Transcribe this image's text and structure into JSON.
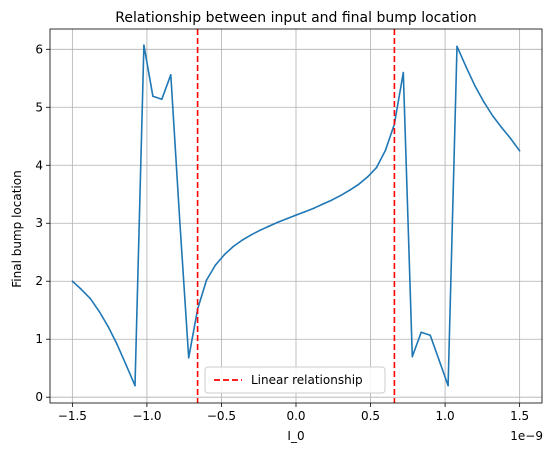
{
  "chart_data": {
    "type": "line",
    "title": "Relationship between input and final bump location",
    "xlabel": "I_0",
    "ylabel": "Final bump location",
    "x_offset_label": "1e−9",
    "xlim": [
      -1.65,
      1.65
    ],
    "ylim": [
      -0.1,
      6.35
    ],
    "x_ticks": [
      -1.5,
      -1.0,
      -0.5,
      0.0,
      0.5,
      1.0,
      1.5
    ],
    "x_tick_labels": [
      "−1.5",
      "−1.0",
      "−0.5",
      "0.0",
      "0.5",
      "1.0",
      "1.5"
    ],
    "y_ticks": [
      0,
      1,
      2,
      3,
      4,
      5,
      6
    ],
    "y_tick_labels": [
      "0",
      "1",
      "2",
      "3",
      "4",
      "5",
      "6"
    ],
    "grid": true,
    "legend_position": "bottom-center",
    "series": [
      {
        "color": "#1f77b4",
        "x": [
          -1.5,
          -1.44,
          -1.38,
          -1.32,
          -1.26,
          -1.2,
          -1.14,
          -1.08,
          -1.02,
          -0.96,
          -0.9,
          -0.84,
          -0.78,
          -0.72,
          -0.66,
          -0.6,
          -0.54,
          -0.48,
          -0.42,
          -0.36,
          -0.3,
          -0.24,
          -0.18,
          -0.12,
          -0.06,
          0.0,
          0.06,
          0.12,
          0.18,
          0.24,
          0.3,
          0.36,
          0.42,
          0.48,
          0.54,
          0.6,
          0.66,
          0.72,
          0.78,
          0.84,
          0.9,
          0.96,
          1.02,
          1.08,
          1.14,
          1.2,
          1.26,
          1.32,
          1.38,
          1.44,
          1.5
        ],
        "values": [
          2.0,
          1.86,
          1.7,
          1.48,
          1.22,
          0.91,
          0.56,
          0.2,
          6.07,
          5.19,
          5.14,
          5.56,
          3.06,
          0.68,
          1.52,
          2.02,
          2.28,
          2.46,
          2.6,
          2.71,
          2.8,
          2.88,
          2.95,
          3.02,
          3.08,
          3.14,
          3.2,
          3.26,
          3.33,
          3.4,
          3.48,
          3.57,
          3.67,
          3.8,
          3.96,
          4.26,
          4.71,
          5.6,
          0.7,
          1.12,
          1.07,
          0.64,
          0.2,
          6.05,
          5.7,
          5.37,
          5.09,
          4.85,
          4.65,
          4.46,
          4.25
        ]
      },
      {
        "name": "Linear relationship",
        "color": "#ff0000",
        "style": "dashed",
        "vertical_x": [
          -0.66,
          0.66
        ]
      }
    ]
  }
}
